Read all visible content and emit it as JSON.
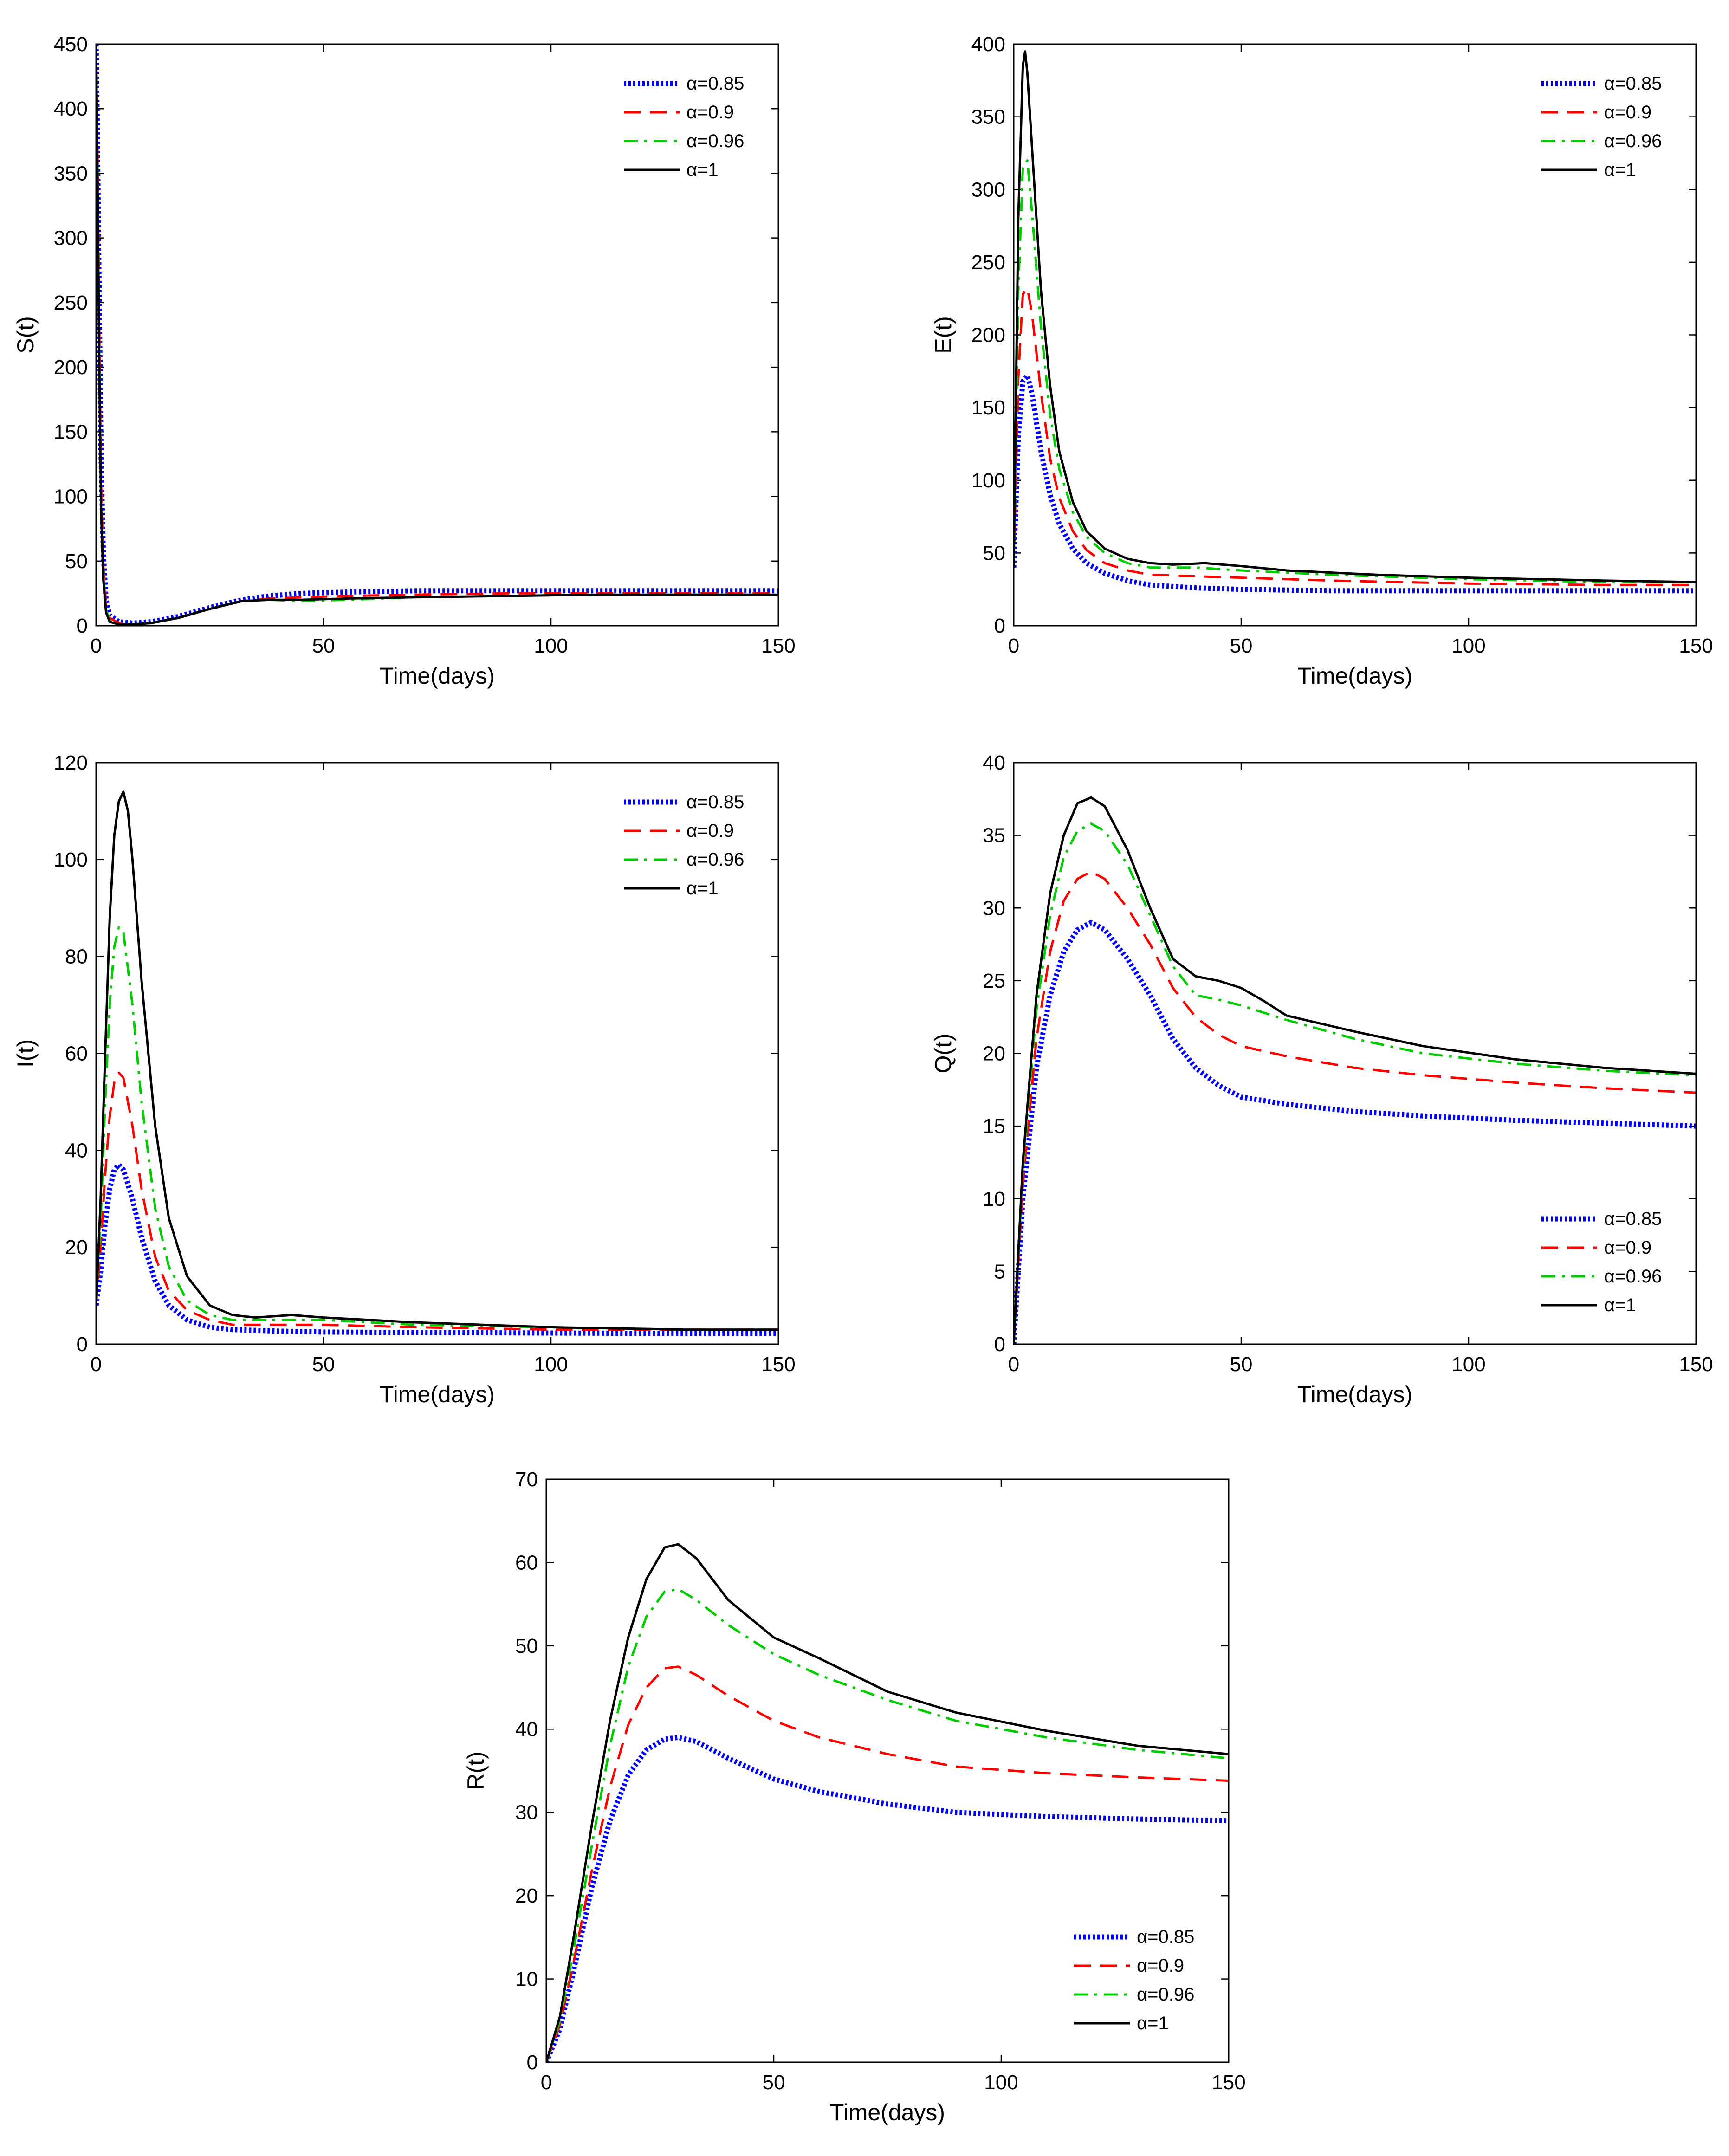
{
  "chart_data": [
    {
      "type": "line",
      "ylabel": "S(t)",
      "xlabel": "Time(days)",
      "xlim": [
        0,
        150
      ],
      "ylim": [
        0,
        450
      ],
      "xticks": [
        0,
        50,
        100,
        150
      ],
      "yticks": [
        0,
        50,
        100,
        150,
        200,
        250,
        300,
        350,
        400,
        450
      ],
      "legend_position": "top-right",
      "series": [
        {
          "name": "α=0.85",
          "color": "#0000ff",
          "style": "dotted",
          "x": [
            0,
            0.3,
            0.7,
            1.1,
            1.6,
            2.2,
            3,
            5,
            8,
            12,
            18,
            25,
            32,
            38,
            45,
            55,
            70,
            90,
            110,
            130,
            150
          ],
          "y": [
            450,
            380,
            250,
            130,
            55,
            20,
            8,
            3,
            2,
            3,
            7,
            14,
            20,
            23,
            25,
            26,
            27,
            27,
            27,
            27,
            27
          ]
        },
        {
          "name": "α=0.9",
          "color": "#ff0000",
          "style": "dashed",
          "x": [
            0,
            0.3,
            0.7,
            1.1,
            1.6,
            2.2,
            3,
            5,
            8,
            12,
            18,
            25,
            32,
            38,
            45,
            55,
            70,
            90,
            110,
            130,
            150
          ],
          "y": [
            450,
            370,
            230,
            110,
            45,
            15,
            6,
            2,
            1,
            2,
            6,
            13,
            19,
            21,
            22,
            23,
            24,
            25,
            25,
            25,
            25
          ]
        },
        {
          "name": "α=0.96",
          "color": "#00cc00",
          "style": "dashdot",
          "x": [
            0,
            0.3,
            0.7,
            1.1,
            1.6,
            2.2,
            3,
            5,
            8,
            12,
            18,
            25,
            32,
            38,
            45,
            55,
            70,
            90,
            110,
            130,
            150
          ],
          "y": [
            450,
            360,
            210,
            95,
            38,
            12,
            4,
            1,
            1,
            2,
            6,
            13,
            19,
            20,
            19,
            20,
            22,
            23,
            24,
            24,
            24
          ]
        },
        {
          "name": "α=1",
          "color": "#000000",
          "style": "solid",
          "x": [
            0,
            0.3,
            0.7,
            1.1,
            1.6,
            2.2,
            3,
            5,
            8,
            12,
            18,
            25,
            32,
            38,
            45,
            55,
            70,
            90,
            110,
            130,
            150
          ],
          "y": [
            450,
            350,
            200,
            90,
            35,
            10,
            3,
            1,
            1,
            2,
            6,
            13,
            19,
            20,
            20,
            21,
            22,
            23,
            24,
            24,
            24
          ]
        }
      ]
    },
    {
      "type": "line",
      "ylabel": "E(t)",
      "xlabel": "Time(days)",
      "xlim": [
        0,
        150
      ],
      "ylim": [
        0,
        400
      ],
      "xticks": [
        0,
        50,
        100,
        150
      ],
      "yticks": [
        0,
        50,
        100,
        150,
        200,
        250,
        300,
        350,
        400
      ],
      "legend_position": "top-right",
      "series": [
        {
          "name": "α=0.85",
          "color": "#0000ff",
          "style": "dotted",
          "x": [
            0,
            1,
            2,
            3,
            4,
            6,
            8,
            10,
            13,
            16,
            20,
            25,
            30,
            40,
            50,
            70,
            100,
            130,
            150
          ],
          "y": [
            40,
            130,
            168,
            172,
            160,
            120,
            90,
            70,
            53,
            43,
            36,
            31,
            28,
            26,
            25,
            24,
            24,
            24,
            24
          ]
        },
        {
          "name": "α=0.9",
          "color": "#ff0000",
          "style": "dashed",
          "x": [
            0,
            1,
            2,
            3,
            4,
            6,
            8,
            10,
            13,
            16,
            20,
            25,
            30,
            40,
            50,
            70,
            100,
            130,
            150
          ],
          "y": [
            40,
            170,
            228,
            232,
            215,
            160,
            115,
            88,
            65,
            52,
            43,
            38,
            35,
            34,
            33,
            31,
            29,
            28,
            28
          ]
        },
        {
          "name": "α=0.96",
          "color": "#00cc00",
          "style": "dashdot",
          "x": [
            0,
            1,
            2,
            3,
            4,
            6,
            8,
            10,
            13,
            16,
            20,
            25,
            30,
            40,
            50,
            70,
            100,
            130,
            150
          ],
          "y": [
            40,
            230,
            315,
            320,
            285,
            205,
            145,
            108,
            78,
            61,
            50,
            43,
            40,
            40,
            38,
            35,
            32,
            30,
            30
          ]
        },
        {
          "name": "α=1",
          "color": "#000000",
          "style": "solid",
          "x": [
            0,
            1,
            2,
            2.5,
            3,
            4,
            6,
            8,
            10,
            13,
            16,
            20,
            25,
            30,
            35,
            42,
            50,
            60,
            80,
            100,
            130,
            150
          ],
          "y": [
            40,
            280,
            385,
            395,
            380,
            330,
            230,
            165,
            120,
            85,
            65,
            53,
            46,
            43,
            42,
            43,
            41,
            38,
            35,
            33,
            31,
            30
          ]
        }
      ]
    },
    {
      "type": "line",
      "ylabel": "I(t)",
      "xlabel": "Time(days)",
      "xlim": [
        0,
        150
      ],
      "ylim": [
        0,
        120
      ],
      "xticks": [
        0,
        50,
        100,
        150
      ],
      "yticks": [
        0,
        20,
        40,
        60,
        80,
        100,
        120
      ],
      "legend_position": "top-right",
      "series": [
        {
          "name": "α=0.85",
          "color": "#0000ff",
          "style": "dotted",
          "x": [
            0,
            1,
            2,
            3,
            4,
            5,
            6,
            8,
            10,
            13,
            16,
            20,
            25,
            30,
            40,
            50,
            70,
            100,
            130,
            150
          ],
          "y": [
            8,
            15,
            25,
            32,
            36,
            37,
            36,
            30,
            22,
            13,
            8,
            5,
            3.5,
            3,
            2.7,
            2.5,
            2.4,
            2.3,
            2.2,
            2.2
          ]
        },
        {
          "name": "α=0.9",
          "color": "#ff0000",
          "style": "dashed",
          "x": [
            0,
            1,
            2,
            3,
            4,
            5,
            6,
            8,
            10,
            13,
            16,
            20,
            25,
            30,
            40,
            50,
            70,
            100,
            130,
            150
          ],
          "y": [
            8,
            20,
            35,
            47,
            54,
            56,
            55,
            45,
            32,
            18,
            11,
            7,
            5,
            4,
            4,
            4,
            3.5,
            3,
            3,
            3
          ]
        },
        {
          "name": "α=0.96",
          "color": "#00cc00",
          "style": "dashdot",
          "x": [
            0,
            1,
            2,
            3,
            4,
            5,
            6,
            8,
            10,
            13,
            16,
            20,
            25,
            30,
            40,
            50,
            70,
            100,
            130,
            150
          ],
          "y": [
            8,
            25,
            50,
            70,
            82,
            86,
            85,
            70,
            50,
            28,
            16,
            9,
            6,
            5,
            5,
            5,
            4,
            3.5,
            3,
            3
          ]
        },
        {
          "name": "α=1",
          "color": "#000000",
          "style": "solid",
          "x": [
            0,
            1,
            2,
            3,
            4,
            5,
            6,
            7,
            8,
            10,
            13,
            16,
            20,
            25,
            30,
            35,
            43,
            50,
            70,
            100,
            130,
            150
          ],
          "y": [
            8,
            30,
            60,
            88,
            105,
            112,
            114,
            110,
            100,
            75,
            45,
            26,
            14,
            8,
            6,
            5.5,
            6,
            5.5,
            4.5,
            3.5,
            3,
            3
          ]
        }
      ]
    },
    {
      "type": "line",
      "ylabel": "Q(t)",
      "xlabel": "Time(days)",
      "xlim": [
        0,
        150
      ],
      "ylim": [
        0,
        40
      ],
      "xticks": [
        0,
        50,
        100,
        150
      ],
      "yticks": [
        0,
        5,
        10,
        15,
        20,
        25,
        30,
        35,
        40
      ],
      "legend_position": "bottom-right",
      "series": [
        {
          "name": "α=0.85",
          "color": "#0000ff",
          "style": "dotted",
          "x": [
            0,
            2,
            5,
            8,
            11,
            14,
            17,
            20,
            25,
            30,
            35,
            40,
            45,
            50,
            60,
            75,
            90,
            110,
            130,
            150
          ],
          "y": [
            0,
            10,
            19,
            24,
            27,
            28.5,
            29,
            28.5,
            26.5,
            24,
            21,
            19,
            17.8,
            17,
            16.5,
            16,
            15.7,
            15.4,
            15.2,
            15
          ]
        },
        {
          "name": "α=0.9",
          "color": "#ff0000",
          "style": "dashed",
          "x": [
            0,
            2,
            5,
            8,
            11,
            14,
            17,
            20,
            25,
            30,
            35,
            40,
            45,
            50,
            60,
            75,
            90,
            110,
            130,
            150
          ],
          "y": [
            0,
            11,
            21,
            27,
            30.5,
            32,
            32.5,
            32,
            30,
            27.5,
            24.5,
            22.5,
            21.3,
            20.5,
            19.8,
            19,
            18.5,
            18,
            17.6,
            17.3
          ]
        },
        {
          "name": "α=0.96",
          "color": "#00cc00",
          "style": "dashdot",
          "x": [
            0,
            2,
            5,
            8,
            11,
            14,
            17,
            20,
            25,
            30,
            35,
            40,
            45,
            50,
            60,
            75,
            90,
            110,
            130,
            150
          ],
          "y": [
            0,
            12,
            23,
            29.5,
            33.5,
            35.3,
            35.8,
            35.3,
            33,
            29.5,
            26,
            24,
            23.7,
            23.3,
            22.3,
            21,
            20,
            19.3,
            18.8,
            18.5
          ]
        },
        {
          "name": "α=1",
          "color": "#000000",
          "style": "solid",
          "x": [
            0,
            2,
            5,
            8,
            11,
            14,
            17,
            20,
            25,
            30,
            35,
            40,
            45,
            50,
            55,
            60,
            75,
            90,
            110,
            130,
            150
          ],
          "y": [
            0,
            12.5,
            24,
            31,
            35,
            37.2,
            37.6,
            37,
            34,
            30,
            26.5,
            25.3,
            25,
            24.5,
            23.6,
            22.6,
            21.5,
            20.5,
            19.6,
            19,
            18.6
          ]
        }
      ]
    },
    {
      "type": "line",
      "ylabel": "R(t)",
      "xlabel": "Time(days)",
      "xlim": [
        0,
        150
      ],
      "ylim": [
        0,
        70
      ],
      "xticks": [
        0,
        50,
        100,
        150
      ],
      "yticks": [
        0,
        10,
        20,
        30,
        40,
        50,
        60,
        70
      ],
      "legend_position": "bottom-right",
      "series": [
        {
          "name": "α=0.85",
          "color": "#0000ff",
          "style": "dotted",
          "x": [
            0,
            3,
            6,
            10,
            14,
            18,
            22,
            26,
            29,
            33,
            40,
            50,
            60,
            75,
            90,
            110,
            130,
            150
          ],
          "y": [
            0,
            4,
            11,
            21,
            29,
            34.5,
            37.5,
            38.8,
            39,
            38.5,
            36.5,
            34,
            32.5,
            31,
            30,
            29.5,
            29.2,
            29
          ]
        },
        {
          "name": "α=0.9",
          "color": "#ff0000",
          "style": "dashed",
          "x": [
            0,
            3,
            6,
            10,
            14,
            18,
            22,
            26,
            29,
            33,
            40,
            50,
            60,
            75,
            90,
            110,
            130,
            150
          ],
          "y": [
            0,
            4.5,
            12,
            23,
            33,
            40.5,
            45,
            47.3,
            47.5,
            46.5,
            44,
            41,
            39,
            37,
            35.5,
            34.7,
            34.2,
            33.8
          ]
        },
        {
          "name": "α=0.96",
          "color": "#00cc00",
          "style": "dashdot",
          "x": [
            0,
            3,
            6,
            10,
            14,
            18,
            22,
            26,
            29,
            33,
            40,
            50,
            60,
            75,
            90,
            110,
            130,
            150
          ],
          "y": [
            0,
            5,
            13.5,
            26,
            38,
            47.5,
            53.5,
            56.5,
            56.8,
            55.5,
            52.5,
            49,
            46.5,
            43.5,
            41,
            39,
            37.5,
            36.5
          ]
        },
        {
          "name": "α=1",
          "color": "#000000",
          "style": "solid",
          "x": [
            0,
            3,
            6,
            10,
            14,
            18,
            22,
            26,
            29,
            33,
            40,
            50,
            60,
            75,
            90,
            110,
            130,
            150
          ],
          "y": [
            0,
            5.5,
            15,
            28.5,
            41,
            51,
            58,
            61.8,
            62.2,
            60.5,
            55.5,
            51,
            48.5,
            44.5,
            42,
            39.8,
            38,
            37
          ]
        }
      ]
    }
  ]
}
